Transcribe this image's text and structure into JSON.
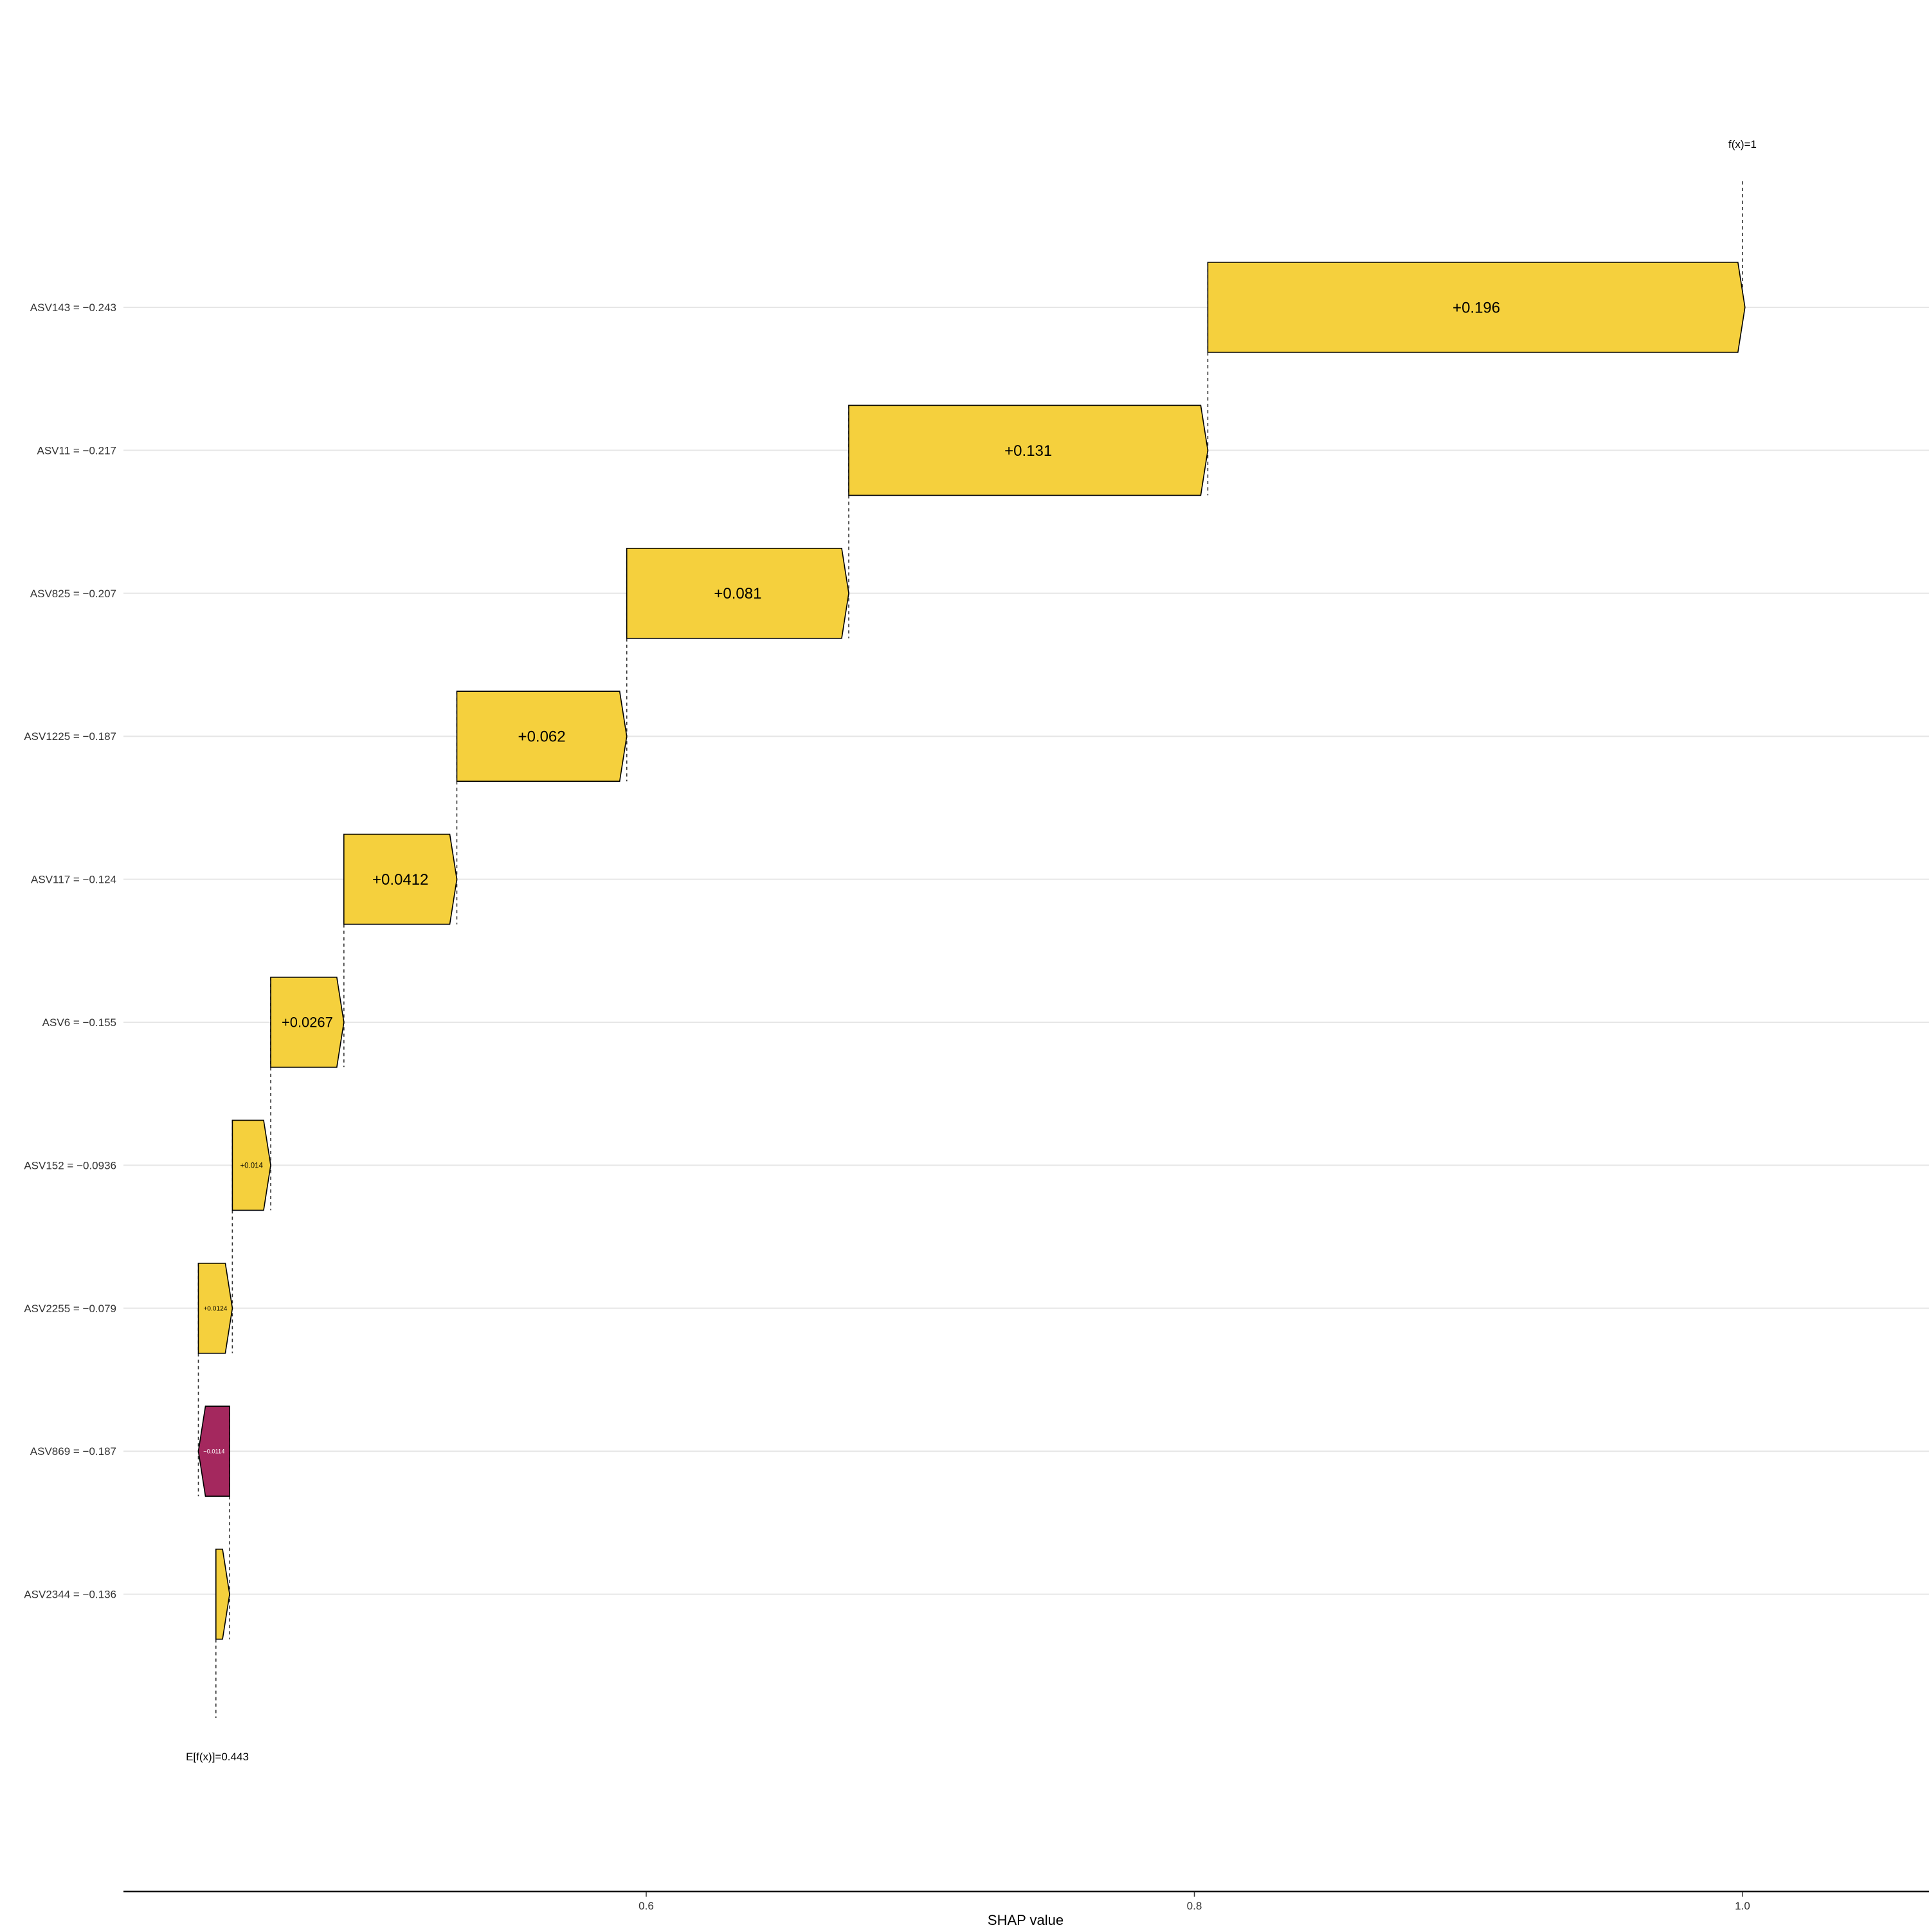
{
  "chart_data": {
    "type": "waterfall",
    "xlabel": "SHAP value",
    "ylabel": "",
    "xlim": [
      0.345,
      1.08
    ],
    "x_ticks": [
      {
        "value": 0.6,
        "label": "0.6"
      },
      {
        "value": 0.8,
        "label": "0.8"
      },
      {
        "value": 1.0,
        "label": "1.0"
      }
    ],
    "base_value": 0.443,
    "base_label": "E[f(x)]=0.443",
    "final_value": 1.0,
    "final_label": "f(x)=1",
    "grid": true,
    "colors": {
      "positive": "#F5D03D",
      "negative": "#A4285E",
      "positive_text": "#000000",
      "negative_text": "#ffffff"
    },
    "features": [
      {
        "label": "ASV143 = −0.243",
        "shap": 0.196,
        "value_label": "+0.196"
      },
      {
        "label": "ASV11 = −0.217",
        "shap": 0.131,
        "value_label": "+0.131"
      },
      {
        "label": "ASV825 = −0.207",
        "shap": 0.081,
        "value_label": "+0.081"
      },
      {
        "label": "ASV1225 = −0.187",
        "shap": 0.062,
        "value_label": "+0.062"
      },
      {
        "label": "ASV117 = −0.124",
        "shap": 0.0412,
        "value_label": "+0.0412"
      },
      {
        "label": "ASV6 = −0.155",
        "shap": 0.0267,
        "value_label": "+0.0267"
      },
      {
        "label": "ASV152 = −0.0936",
        "shap": 0.014,
        "value_label": "+0.014"
      },
      {
        "label": "ASV2255 = −0.079",
        "shap": 0.0124,
        "value_label": "+0.0124"
      },
      {
        "label": "ASV869 = −0.187",
        "shap": -0.0114,
        "value_label": "−0.0114"
      },
      {
        "label": "ASV2344 = −0.136",
        "shap": 0.005,
        "value_label": ""
      }
    ]
  }
}
